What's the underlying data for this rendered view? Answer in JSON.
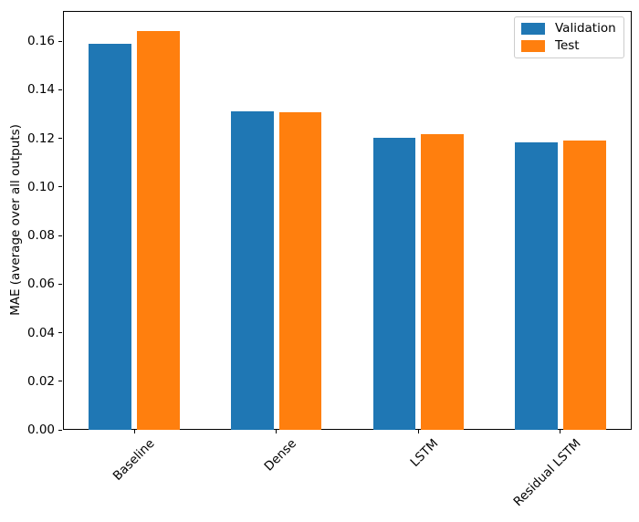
{
  "chart_data": {
    "type": "bar",
    "title": "",
    "xlabel": "",
    "ylabel": "MAE (average over all outputs)",
    "categories": [
      "Baseline",
      "Dense",
      "LSTM",
      "Residual LSTM"
    ],
    "series": [
      {
        "name": "Validation",
        "color": "#1f77b4",
        "values": [
          0.159,
          0.131,
          0.1201,
          0.1183
        ]
      },
      {
        "name": "Test",
        "color": "#ff7f0e",
        "values": [
          0.1641,
          0.1307,
          0.1218,
          0.1191
        ]
      }
    ],
    "bar_width": 0.3,
    "bar_offsets": [
      -0.17,
      0.17
    ],
    "xlim": [
      -0.502,
      3.502
    ],
    "ylim": [
      0,
      0.1725
    ],
    "ytick_labels": [
      "0.00",
      "0.02",
      "0.04",
      "0.06",
      "0.08",
      "0.10",
      "0.12",
      "0.14",
      "0.16"
    ],
    "xtick_rotation_deg": 45,
    "grid": false,
    "legend_position": "upper right",
    "axis_color": "#000000",
    "background_color": "#ffffff"
  }
}
